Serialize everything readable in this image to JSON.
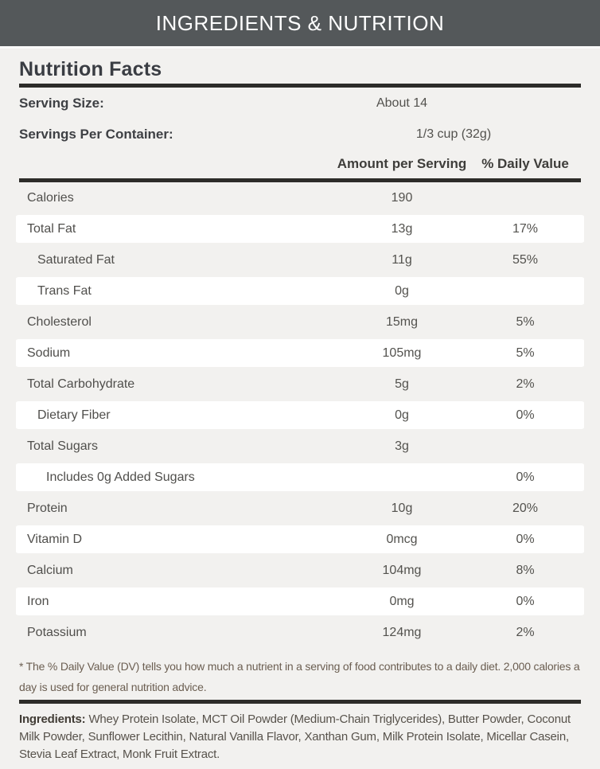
{
  "section_bar": {
    "title": "INGREDIENTS & NUTRITION"
  },
  "panel": {
    "title": "Nutrition Facts",
    "serving_info": [
      {
        "label": "Serving Size:",
        "value": "About 14"
      },
      {
        "label": "Servings Per Container:",
        "value": "1/3 cup (32g)"
      }
    ],
    "columns": {
      "amount": "Amount per Serving",
      "daily_value": "% Daily Value"
    },
    "rows": [
      {
        "label": "Calories",
        "amount": "190",
        "dv": ""
      },
      {
        "label": "Total Fat",
        "amount": "13g",
        "dv": "17%"
      },
      {
        "label": "Saturated Fat",
        "amount": "11g",
        "dv": "55%"
      },
      {
        "label": "Trans Fat",
        "amount": "0g",
        "dv": ""
      },
      {
        "label": "Cholesterol",
        "amount": "15mg",
        "dv": "5%"
      },
      {
        "label": "Sodium",
        "amount": "105mg",
        "dv": "5%"
      },
      {
        "label": "Total Carbohydrate",
        "amount": "5g",
        "dv": "2%"
      },
      {
        "label": "Dietary Fiber",
        "amount": "0g",
        "dv": "0%"
      },
      {
        "label": "Total Sugars",
        "amount": "3g",
        "dv": ""
      },
      {
        "label": "Includes 0g Added Sugars",
        "amount": "",
        "dv": "0%"
      },
      {
        "label": "Protein",
        "amount": "10g",
        "dv": "20%"
      },
      {
        "label": "Vitamin D",
        "amount": "0mcg",
        "dv": "0%"
      },
      {
        "label": "Calcium",
        "amount": "104mg",
        "dv": "8%"
      },
      {
        "label": "Iron",
        "amount": "0mg",
        "dv": "0%"
      },
      {
        "label": "Potassium",
        "amount": "124mg",
        "dv": "2%"
      }
    ],
    "footnote": "* The % Daily Value (DV) tells you how much a nutrient in a serving of food contributes to a daily diet. 2,000 calories a day is used for general nutrition advice.",
    "ingredients_label": "Ingredients:",
    "ingredients_text": "Whey Protein Isolate, MCT Oil Powder (Medium-Chain Triglycerides), Butter Powder, Coconut Milk Powder, Sunflower Lecithin, Natural Vanilla Flavor, Xanthan Gum, Milk Protein Isolate, Micellar Casein, Stevia Leaf Extract, Monk Fruit Extract."
  },
  "colors": {
    "bar_background": "#54585a",
    "bar_text": "#ffffff",
    "page_background": "#f2f1ef",
    "row_stripe": "#ffffff",
    "thick_rule": "#2d2c29",
    "heading_text": "#3a3d43",
    "body_text": "#53524e",
    "footnote_text": "#6b5e51"
  }
}
